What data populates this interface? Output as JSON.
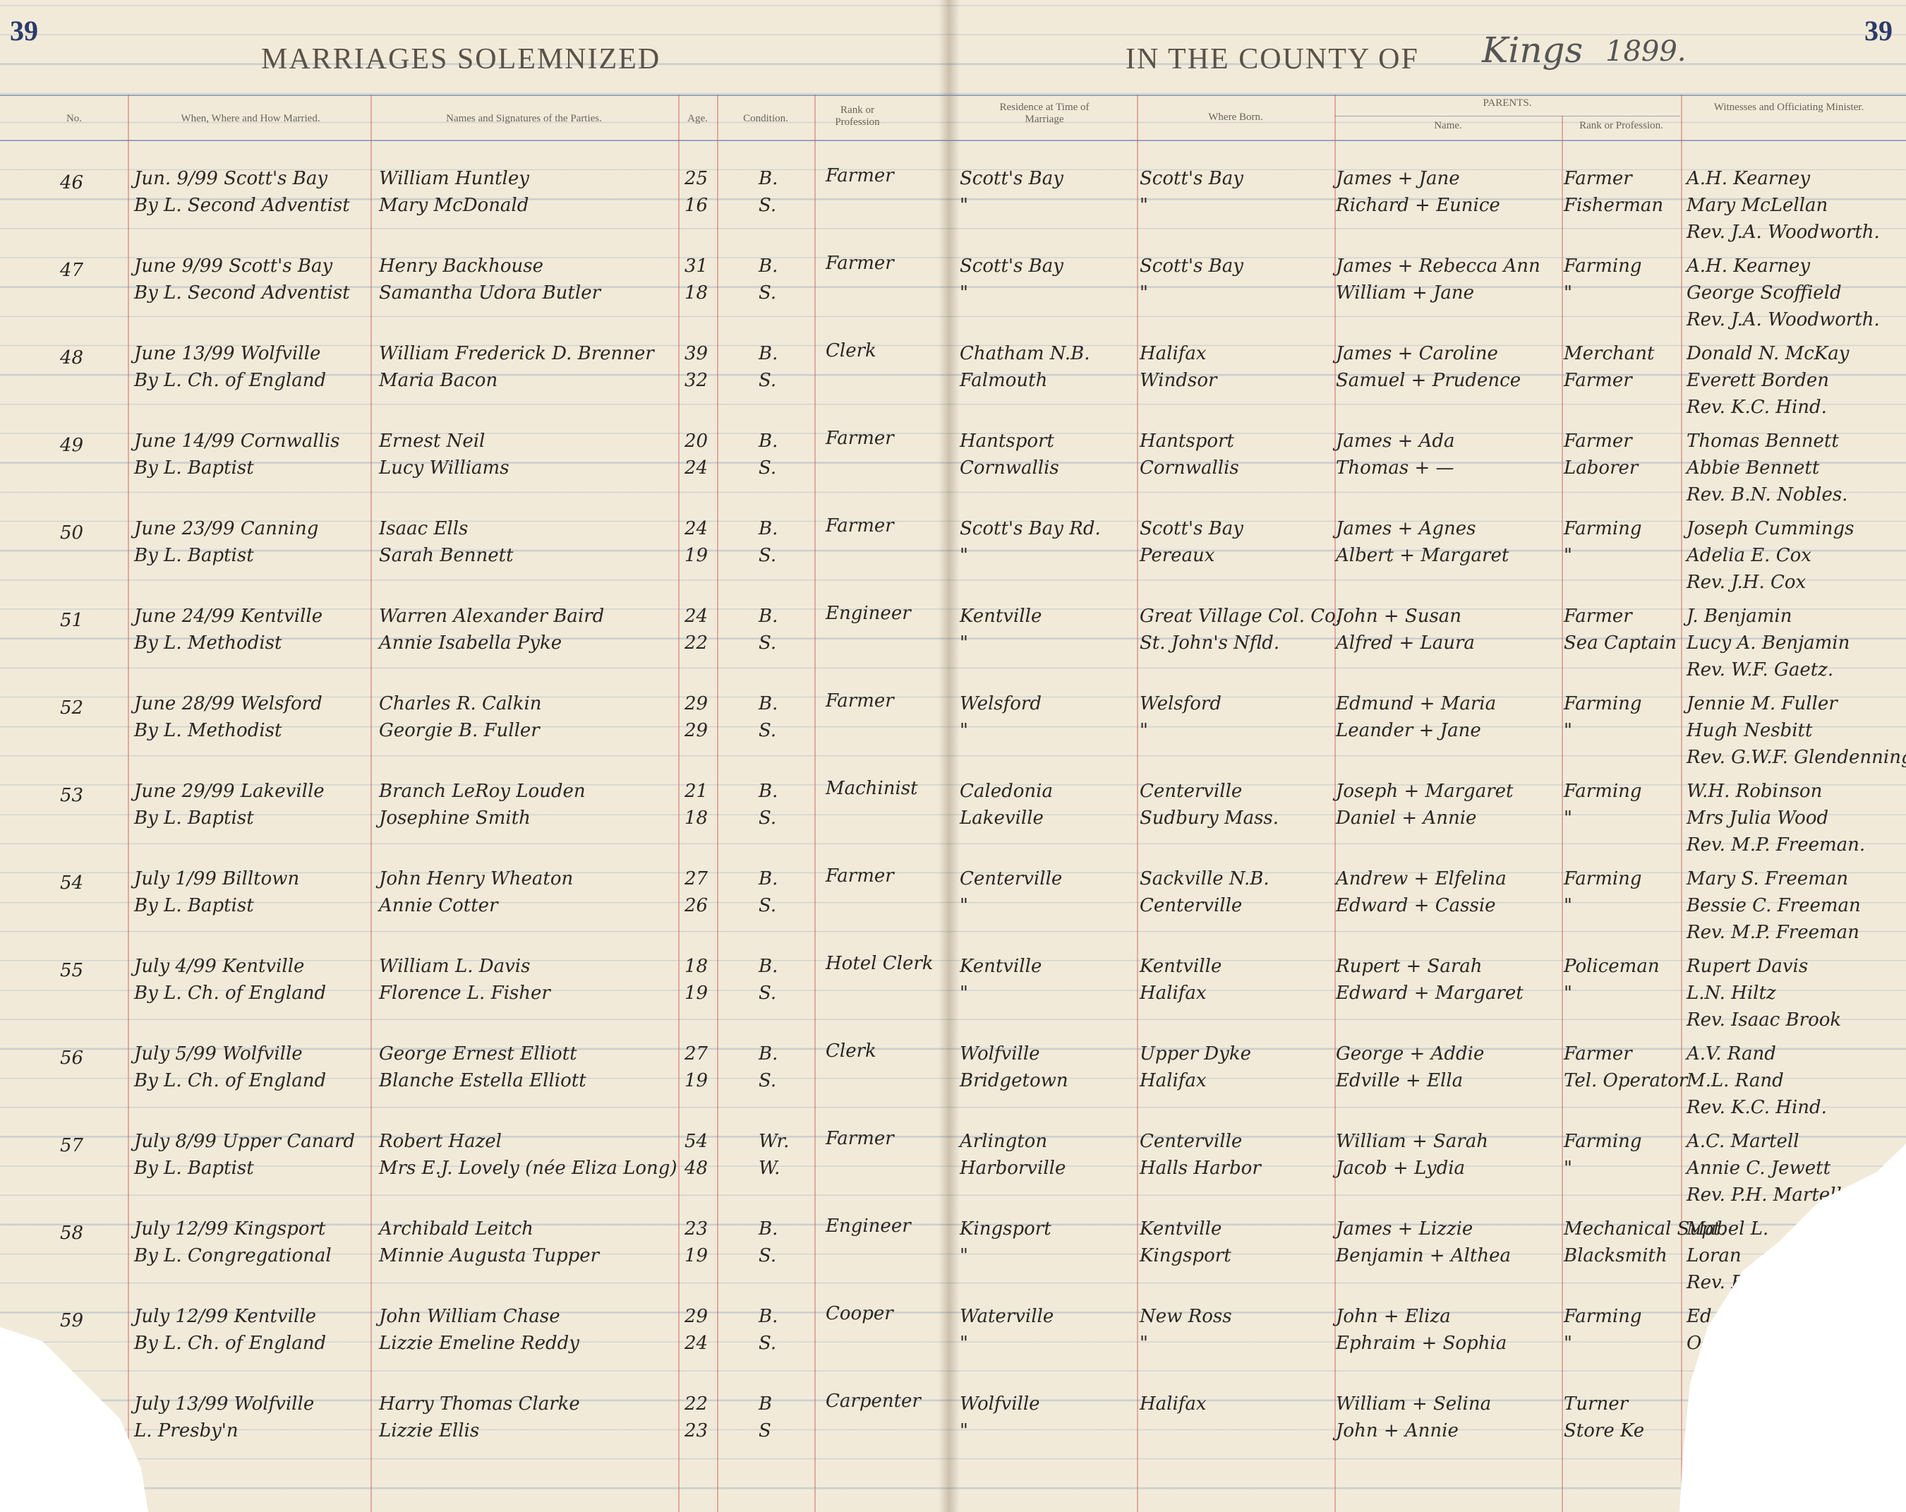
{
  "header": {
    "page_left": "39",
    "page_right": "39",
    "title_left": "MARRIAGES SOLEMNIZED",
    "title_right": "IN THE COUNTY OF",
    "county": "Kings",
    "year": "1899."
  },
  "columns": {
    "no": "No.",
    "when": "When, Where and How Married.",
    "names": "Names and Signatures of the Parties.",
    "age": "Age.",
    "condition": "Condition.",
    "rank": "Rank or Profession",
    "residence": "Residence at Time of Marriage",
    "born": "Where Born.",
    "parents": "PARENTS.",
    "parent_names": "Name.",
    "parent_rank": "Rank or Profession.",
    "witnesses": "Witnesses and Officiating Minister."
  },
  "entries": [
    {
      "no": "46",
      "when": [
        "Jun. 9/99 Scott's Bay",
        "By L. Second Adventist"
      ],
      "names": [
        "William Huntley",
        "Mary McDonald"
      ],
      "ages": [
        "25",
        "16"
      ],
      "condition": [
        "B.",
        "S."
      ],
      "rank": "Farmer",
      "residence": [
        "Scott's Bay",
        "\""
      ],
      "born": [
        "Scott's Bay",
        "\""
      ],
      "parent_names": [
        "James + Jane",
        "Richard + Eunice"
      ],
      "parent_rank": [
        "Farmer",
        "Fisherman"
      ],
      "witnesses": [
        "A.H. Kearney",
        "Mary McLellan",
        "Rev. J.A. Woodworth."
      ]
    },
    {
      "no": "47",
      "when": [
        "June 9/99 Scott's Bay",
        "By L. Second Adventist"
      ],
      "names": [
        "Henry Backhouse",
        "Samantha Udora Butler"
      ],
      "ages": [
        "31",
        "18"
      ],
      "condition": [
        "B.",
        "S."
      ],
      "rank": "Farmer",
      "residence": [
        "Scott's Bay",
        "\""
      ],
      "born": [
        "Scott's Bay",
        "\""
      ],
      "parent_names": [
        "James + Rebecca Ann",
        "William + Jane"
      ],
      "parent_rank": [
        "Farming",
        "\""
      ],
      "witnesses": [
        "A.H. Kearney",
        "George Scoffield",
        "Rev. J.A. Woodworth."
      ]
    },
    {
      "no": "48",
      "when": [
        "June 13/99 Wolfville",
        "By L. Ch. of England"
      ],
      "names": [
        "William Frederick D. Brenner",
        "Maria Bacon"
      ],
      "ages": [
        "39",
        "32"
      ],
      "condition": [
        "B.",
        "S."
      ],
      "rank": "Clerk",
      "residence": [
        "Chatham N.B.",
        "Falmouth"
      ],
      "born": [
        "Halifax",
        "Windsor"
      ],
      "parent_names": [
        "James + Caroline",
        "Samuel + Prudence"
      ],
      "parent_rank": [
        "Merchant",
        "Farmer"
      ],
      "witnesses": [
        "Donald N. McKay",
        "Everett Borden",
        "Rev. K.C. Hind."
      ]
    },
    {
      "no": "49",
      "when": [
        "June 14/99 Cornwallis",
        "By L. Baptist"
      ],
      "names": [
        "Ernest Neil",
        "Lucy Williams"
      ],
      "ages": [
        "20",
        "24"
      ],
      "condition": [
        "B.",
        "S."
      ],
      "rank": "Farmer",
      "residence": [
        "Hantsport",
        "Cornwallis"
      ],
      "born": [
        "Hantsport",
        "Cornwallis"
      ],
      "parent_names": [
        "James + Ada",
        "Thomas + —"
      ],
      "parent_rank": [
        "Farmer",
        "Laborer"
      ],
      "witnesses": [
        "Thomas Bennett",
        "Abbie Bennett",
        "Rev. B.N. Nobles."
      ]
    },
    {
      "no": "50",
      "when": [
        "June 23/99 Canning",
        "By L. Baptist"
      ],
      "names": [
        "Isaac Ells",
        "Sarah Bennett"
      ],
      "ages": [
        "24",
        "19"
      ],
      "condition": [
        "B.",
        "S."
      ],
      "rank": "Farmer",
      "residence": [
        "Scott's Bay Rd.",
        "\""
      ],
      "born": [
        "Scott's Bay",
        "Pereaux"
      ],
      "parent_names": [
        "James + Agnes",
        "Albert + Margaret"
      ],
      "parent_rank": [
        "Farming",
        "\""
      ],
      "witnesses": [
        "Joseph Cummings",
        "Adelia E. Cox",
        "Rev. J.H. Cox"
      ]
    },
    {
      "no": "51",
      "when": [
        "June 24/99 Kentville",
        "By L. Methodist"
      ],
      "names": [
        "Warren Alexander Baird",
        "Annie Isabella Pyke"
      ],
      "ages": [
        "24",
        "22"
      ],
      "condition": [
        "B.",
        "S."
      ],
      "rank": "Engineer",
      "residence": [
        "Kentville",
        "\""
      ],
      "born": [
        "Great Village Col. Co.",
        "St. John's Nfld."
      ],
      "parent_names": [
        "John + Susan",
        "Alfred + Laura"
      ],
      "parent_rank": [
        "Farmer",
        "Sea Captain"
      ],
      "witnesses": [
        "J. Benjamin",
        "Lucy A. Benjamin",
        "Rev. W.F. Gaetz."
      ]
    },
    {
      "no": "52",
      "when": [
        "June 28/99 Welsford",
        "By L. Methodist"
      ],
      "names": [
        "Charles R. Calkin",
        "Georgie B. Fuller"
      ],
      "ages": [
        "29",
        "29"
      ],
      "condition": [
        "B.",
        "S."
      ],
      "rank": "Farmer",
      "residence": [
        "Welsford",
        "\""
      ],
      "born": [
        "Welsford",
        "\""
      ],
      "parent_names": [
        "Edmund + Maria",
        "Leander + Jane"
      ],
      "parent_rank": [
        "Farming",
        "\""
      ],
      "witnesses": [
        "Jennie M. Fuller",
        "Hugh Nesbitt",
        "Rev. G.W.F. Glendenning"
      ]
    },
    {
      "no": "53",
      "when": [
        "June 29/99 Lakeville",
        "By L. Baptist"
      ],
      "names": [
        "Branch LeRoy Louden",
        "Josephine Smith"
      ],
      "ages": [
        "21",
        "18"
      ],
      "condition": [
        "B.",
        "S."
      ],
      "rank": "Machinist",
      "residence": [
        "Caledonia",
        "Lakeville"
      ],
      "born": [
        "Centerville",
        "Sudbury Mass."
      ],
      "parent_names": [
        "Joseph + Margaret",
        "Daniel + Annie"
      ],
      "parent_rank": [
        "Farming",
        "\""
      ],
      "witnesses": [
        "W.H. Robinson",
        "Mrs Julia Wood",
        "Rev. M.P. Freeman."
      ]
    },
    {
      "no": "54",
      "when": [
        "July 1/99 Billtown",
        "By L. Baptist"
      ],
      "names": [
        "John Henry Wheaton",
        "Annie Cotter"
      ],
      "ages": [
        "27",
        "26"
      ],
      "condition": [
        "B.",
        "S."
      ],
      "rank": "Farmer",
      "residence": [
        "Centerville",
        "\""
      ],
      "born": [
        "Sackville N.B.",
        "Centerville"
      ],
      "parent_names": [
        "Andrew + Elfelina",
        "Edward + Cassie"
      ],
      "parent_rank": [
        "Farming",
        "\""
      ],
      "witnesses": [
        "Mary S. Freeman",
        "Bessie C. Freeman",
        "Rev. M.P. Freeman"
      ]
    },
    {
      "no": "55",
      "when": [
        "July 4/99 Kentville",
        "By L. Ch. of England"
      ],
      "names": [
        "William L. Davis",
        "Florence L. Fisher"
      ],
      "ages": [
        "18",
        "19"
      ],
      "condition": [
        "B.",
        "S."
      ],
      "rank": "Hotel Clerk",
      "residence": [
        "Kentville",
        "\""
      ],
      "born": [
        "Kentville",
        "Halifax"
      ],
      "parent_names": [
        "Rupert + Sarah",
        "Edward + Margaret"
      ],
      "parent_rank": [
        "Policeman",
        "\""
      ],
      "witnesses": [
        "Rupert Davis",
        "L.N. Hiltz",
        "Rev. Isaac Brook"
      ]
    },
    {
      "no": "56",
      "when": [
        "July 5/99 Wolfville",
        "By L. Ch. of England"
      ],
      "names": [
        "George Ernest Elliott",
        "Blanche Estella Elliott"
      ],
      "ages": [
        "27",
        "19"
      ],
      "condition": [
        "B.",
        "S."
      ],
      "rank": "Clerk",
      "residence": [
        "Wolfville",
        "Bridgetown"
      ],
      "born": [
        "Upper Dyke",
        "Halifax"
      ],
      "parent_names": [
        "George + Addie",
        "Edville + Ella"
      ],
      "parent_rank": [
        "Farmer",
        "Tel. Operator"
      ],
      "witnesses": [
        "A.V. Rand",
        "M.L. Rand",
        "Rev. K.C. Hind."
      ]
    },
    {
      "no": "57",
      "when": [
        "July 8/99 Upper Canard",
        "By L. Baptist"
      ],
      "names": [
        "Robert Hazel",
        "Mrs E.J. Lovely (née Eliza Long)"
      ],
      "ages": [
        "54",
        "48"
      ],
      "condition": [
        "Wr.",
        "W."
      ],
      "rank": "Farmer",
      "residence": [
        "Arlington",
        "Harborville"
      ],
      "born": [
        "Centerville",
        "Halls Harbor"
      ],
      "parent_names": [
        "William + Sarah",
        "Jacob + Lydia"
      ],
      "parent_rank": [
        "Farming",
        "\""
      ],
      "witnesses": [
        "A.C. Martell",
        "Annie C. Jewett",
        "Rev. P.H. Martell"
      ]
    },
    {
      "no": "58",
      "when": [
        "July 12/99 Kingsport",
        "By L. Congregational"
      ],
      "names": [
        "Archibald Leitch",
        "Minnie Augusta Tupper"
      ],
      "ages": [
        "23",
        "19"
      ],
      "condition": [
        "B.",
        "S."
      ],
      "rank": "Engineer",
      "residence": [
        "Kingsport",
        "\""
      ],
      "born": [
        "Kentville",
        "Kingsport"
      ],
      "parent_names": [
        "James + Lizzie",
        "Benjamin + Althea"
      ],
      "parent_rank": [
        "Mechanical Supt.",
        "Blacksmith"
      ],
      "witnesses": [
        "Mabel L.",
        "Loran",
        "Rev. E"
      ]
    },
    {
      "no": "59",
      "when": [
        "July 12/99 Kentville",
        "By L. Ch. of England"
      ],
      "names": [
        "John William Chase",
        "Lizzie Emeline Reddy"
      ],
      "ages": [
        "29",
        "24"
      ],
      "condition": [
        "B.",
        "S."
      ],
      "rank": "Cooper",
      "residence": [
        "Waterville",
        "\""
      ],
      "born": [
        "New Ross",
        "\""
      ],
      "parent_names": [
        "John + Eliza",
        "Ephraim + Sophia"
      ],
      "parent_rank": [
        "Farming",
        "\""
      ],
      "witnesses": [
        "Ed",
        "O"
      ]
    },
    {
      "when": [
        "July 13/99 Wolfville",
        "L. Presby'n"
      ],
      "names": [
        "Harry Thomas Clarke",
        "Lizzie Ellis"
      ],
      "ages": [
        "22",
        "23"
      ],
      "condition": [
        "B",
        "S"
      ],
      "rank": "Carpenter",
      "residence": [
        "Wolfville",
        "\""
      ],
      "born": [
        "Halifax"
      ],
      "parent_names": [
        "William + Selina",
        "John + Annie"
      ],
      "parent_rank": [
        "Turner",
        "Store Ke"
      ]
    }
  ]
}
